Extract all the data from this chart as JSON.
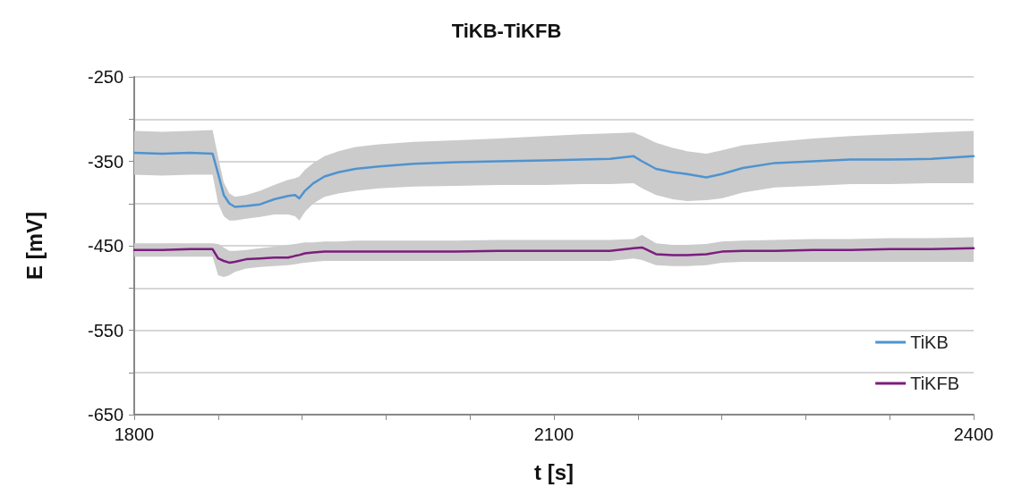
{
  "chart_data": {
    "type": "line",
    "title": "TiKB-TiKFB",
    "xlabel": "t [s]",
    "ylabel": "E [mV]",
    "x": [
      1800,
      1820,
      1840,
      1856,
      1860,
      1864,
      1868,
      1872,
      1880,
      1890,
      1900,
      1910,
      1915,
      1918,
      1922,
      1928,
      1936,
      1946,
      1958,
      1975,
      2000,
      2030,
      2060,
      2094,
      2120,
      2140,
      2157,
      2163,
      2173,
      2185,
      2195,
      2209,
      2220,
      2235,
      2258,
      2285,
      2312,
      2340,
      2370,
      2400
    ],
    "series": [
      {
        "name": "TiKB",
        "color": "#4f93cf",
        "values": [
          -340,
          -341,
          -340,
          -341,
          -365,
          -390,
          -400,
          -404,
          -403,
          -401,
          -395,
          -391,
          -390,
          -394,
          -385,
          -376,
          -368,
          -363,
          -359,
          -356,
          -353,
          -351,
          -350,
          -349,
          -348,
          -347,
          -344,
          -350,
          -359,
          -363,
          -365,
          -369,
          -365,
          -358,
          -352,
          -350,
          -348,
          -348,
          -347,
          -344
        ],
        "upper": [
          -314,
          -315,
          -314,
          -313,
          -345,
          -375,
          -388,
          -392,
          -390,
          -385,
          -378,
          -372,
          -370,
          -368,
          -360,
          -352,
          -344,
          -338,
          -333,
          -330,
          -327,
          -325,
          -323,
          -320,
          -318,
          -317,
          -316,
          -320,
          -328,
          -334,
          -338,
          -341,
          -337,
          -331,
          -327,
          -323,
          -320,
          -318,
          -316,
          -314
        ],
        "lower": [
          -366,
          -367,
          -366,
          -366,
          -400,
          -415,
          -420,
          -420,
          -418,
          -416,
          -413,
          -413,
          -415,
          -420,
          -410,
          -400,
          -392,
          -388,
          -385,
          -382,
          -380,
          -379,
          -378,
          -378,
          -377,
          -377,
          -376,
          -382,
          -390,
          -395,
          -397,
          -396,
          -394,
          -387,
          -381,
          -379,
          -377,
          -377,
          -376,
          -376
        ]
      },
      {
        "name": "TiKFB",
        "color": "#7b1d7e",
        "values": [
          -455,
          -455,
          -454,
          -454,
          -465,
          -468,
          -470,
          -469,
          -466,
          -465,
          -464,
          -464,
          -462,
          -461,
          -459,
          -458,
          -457,
          -457,
          -457,
          -457,
          -457,
          -457,
          -456,
          -456,
          -456,
          -456,
          -453,
          -452,
          -460,
          -461,
          -461,
          -460,
          -457,
          -456,
          -456,
          -455,
          -455,
          -454,
          -454,
          -453
        ],
        "upper": [
          -447,
          -447,
          -447,
          -447,
          -448,
          -452,
          -456,
          -456,
          -455,
          -453,
          -451,
          -449,
          -448,
          -447,
          -446,
          -446,
          -445,
          -445,
          -444,
          -444,
          -444,
          -444,
          -443,
          -443,
          -443,
          -443,
          -442,
          -437,
          -447,
          -449,
          -449,
          -448,
          -445,
          -444,
          -443,
          -442,
          -442,
          -441,
          -441,
          -440
        ],
        "lower": [
          -463,
          -463,
          -463,
          -463,
          -485,
          -487,
          -485,
          -481,
          -477,
          -475,
          -474,
          -473,
          -472,
          -471,
          -470,
          -469,
          -468,
          -468,
          -468,
          -468,
          -468,
          -468,
          -468,
          -468,
          -468,
          -468,
          -465,
          -467,
          -473,
          -474,
          -474,
          -473,
          -470,
          -469,
          -469,
          -469,
          -469,
          -469,
          -469,
          -469
        ]
      }
    ],
    "xlim": [
      1800,
      2400
    ],
    "xticks": [
      1800,
      {
        "value": 1860,
        "label": null
      },
      {
        "value": 1920,
        "label": null
      },
      {
        "value": 1980,
        "label": null
      },
      {
        "value": 2040,
        "label": null
      },
      2100,
      {
        "value": 2160,
        "label": null
      },
      {
        "value": 2220,
        "label": null
      },
      {
        "value": 2280,
        "label": null
      },
      {
        "value": 2340,
        "label": null
      },
      2400
    ],
    "ylim": [
      -650,
      -250
    ],
    "yticks": [
      -650,
      {
        "value": -600,
        "label": null
      },
      -550,
      {
        "value": -500,
        "label": null
      },
      -450,
      {
        "value": -400,
        "label": null
      },
      -350,
      {
        "value": -300,
        "label": null
      },
      -250
    ],
    "grid": "y",
    "legend": "bottom right",
    "marker": "none",
    "line_style": "solid"
  }
}
